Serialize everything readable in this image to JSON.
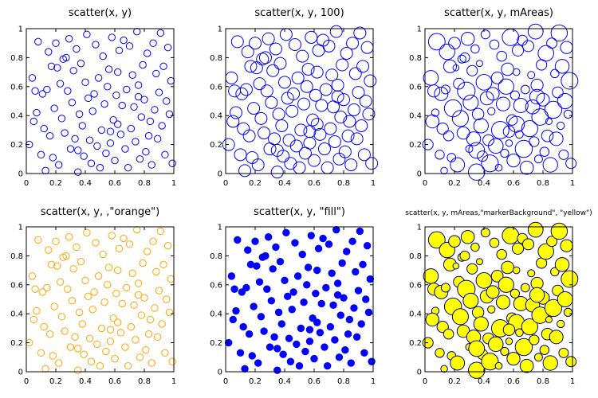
{
  "figure": {
    "background": "#ffffff",
    "axis_color": "#000000"
  },
  "chart_data": [
    {
      "type": "scatter",
      "title": "scatter(x, y)",
      "xlim": [
        0,
        1
      ],
      "ylim": [
        0,
        1
      ],
      "xticks": [
        "0",
        "0.2",
        "0.4",
        "0.6",
        "0.8",
        "1"
      ],
      "yticks": [
        "0",
        "0.2",
        "0.4",
        "0.6",
        "0.8",
        "1"
      ],
      "grid": false,
      "marker": {
        "edge": "#0000ff",
        "face": "none",
        "size": "default",
        "size_mode": "fixed"
      }
    },
    {
      "type": "scatter",
      "title": "scatter(x, y, 100)",
      "xlim": [
        0,
        1
      ],
      "ylim": [
        0,
        1
      ],
      "xticks": [
        "0",
        "0.2",
        "0.4",
        "0.6",
        "0.8",
        "1"
      ],
      "yticks": [
        "0",
        "0.2",
        "0.4",
        "0.6",
        "0.8",
        "1"
      ],
      "grid": false,
      "marker": {
        "edge": "#0000ff",
        "face": "none",
        "size": 100,
        "size_mode": "fixed"
      }
    },
    {
      "type": "scatter",
      "title": "scatter(x, y, mAreas)",
      "xlim": [
        0,
        1
      ],
      "ylim": [
        0,
        1
      ],
      "xticks": [
        "0",
        "0.2",
        "0.4",
        "0.6",
        "0.8",
        "1"
      ],
      "yticks": [
        "0",
        "0.2",
        "0.4",
        "0.6",
        "0.8",
        "1"
      ],
      "grid": false,
      "marker": {
        "edge": "#0000ff",
        "face": "none",
        "size": "mAreas",
        "size_mode": "variable"
      }
    },
    {
      "type": "scatter",
      "title": "scatter(x, y, ,\"orange\")",
      "xlim": [
        0,
        1
      ],
      "ylim": [
        0,
        1
      ],
      "xticks": [
        "0",
        "0.2",
        "0.4",
        "0.6",
        "0.8",
        "1"
      ],
      "yticks": [
        "0",
        "0.2",
        "0.4",
        "0.6",
        "0.8",
        "1"
      ],
      "grid": false,
      "marker": {
        "edge": "#ffa500",
        "face": "none",
        "size": "default",
        "size_mode": "fixed"
      }
    },
    {
      "type": "scatter",
      "title": "scatter(x, y, \"fill\")",
      "xlim": [
        0,
        1
      ],
      "ylim": [
        0,
        1
      ],
      "xticks": [
        "0",
        "0.2",
        "0.4",
        "0.6",
        "0.8",
        "1"
      ],
      "yticks": [
        "0",
        "0.2",
        "0.4",
        "0.6",
        "0.8",
        "1"
      ],
      "grid": false,
      "marker": {
        "edge": "#0000ff",
        "face": "#0000ff",
        "size": "default",
        "size_mode": "fixed"
      }
    },
    {
      "type": "scatter",
      "title": "scatter(x, y, mAreas,\"markerBackground\", \"yellow\")",
      "xlim": [
        0,
        1
      ],
      "ylim": [
        0,
        1
      ],
      "xticks": [
        "0",
        "0.2",
        "0.4",
        "0.6",
        "0.8",
        "1"
      ],
      "yticks": [
        "0",
        "0.2",
        "0.4",
        "0.6",
        "0.8",
        "1"
      ],
      "grid": false,
      "marker": {
        "edge": "#000080",
        "face": "#ffff00",
        "size": "mAreas",
        "size_mode": "variable"
      }
    }
  ],
  "shared_points": {
    "x": [
      0.02,
      0.04,
      0.06,
      0.07,
      0.08,
      0.1,
      0.11,
      0.12,
      0.13,
      0.15,
      0.16,
      0.17,
      0.18,
      0.19,
      0.2,
      0.21,
      0.22,
      0.23,
      0.24,
      0.25,
      0.26,
      0.27,
      0.28,
      0.29,
      0.3,
      0.31,
      0.32,
      0.33,
      0.34,
      0.35,
      0.36,
      0.37,
      0.38,
      0.39,
      0.4,
      0.41,
      0.42,
      0.43,
      0.44,
      0.45,
      0.46,
      0.47,
      0.48,
      0.49,
      0.5,
      0.51,
      0.52,
      0.53,
      0.54,
      0.55,
      0.56,
      0.57,
      0.58,
      0.59,
      0.6,
      0.61,
      0.62,
      0.63,
      0.64,
      0.65,
      0.66,
      0.67,
      0.68,
      0.69,
      0.7,
      0.71,
      0.72,
      0.73,
      0.74,
      0.75,
      0.76,
      0.77,
      0.78,
      0.79,
      0.8,
      0.81,
      0.82,
      0.83,
      0.84,
      0.85,
      0.86,
      0.87,
      0.88,
      0.89,
      0.9,
      0.91,
      0.92,
      0.93,
      0.94,
      0.95,
      0.96,
      0.97,
      0.98,
      0.99,
      0.05,
      0.14,
      0.35,
      0.57,
      0.62,
      0.76
    ],
    "y": [
      0.2,
      0.66,
      0.57,
      0.42,
      0.91,
      0.13,
      0.55,
      0.31,
      0.02,
      0.84,
      0.26,
      0.74,
      0.11,
      0.45,
      0.9,
      0.73,
      0.06,
      0.62,
      0.38,
      0.79,
      0.28,
      0.8,
      0.57,
      0.93,
      0.17,
      0.49,
      0.71,
      0.24,
      0.86,
      0.01,
      0.41,
      0.76,
      0.33,
      0.12,
      0.63,
      0.96,
      0.52,
      0.23,
      0.07,
      0.43,
      0.55,
      0.89,
      0.19,
      0.66,
      0.04,
      0.3,
      0.81,
      0.48,
      0.14,
      0.6,
      0.72,
      0.21,
      0.94,
      0.37,
      0.09,
      0.54,
      0.34,
      0.85,
      0.27,
      0.47,
      0.92,
      0.17,
      0.58,
      0.04,
      0.88,
      0.31,
      0.68,
      0.46,
      0.22,
      0.98,
      0.61,
      0.1,
      0.39,
      0.75,
      0.51,
      0.15,
      0.83,
      0.26,
      0.36,
      0.06,
      0.9,
      0.44,
      0.69,
      0.24,
      0.56,
      0.97,
      0.33,
      0.74,
      0.13,
      0.5,
      0.87,
      0.41,
      0.64,
      0.07,
      0.36,
      0.58,
      0.16,
      0.29,
      0.7,
      0.53
    ],
    "areas": [
      60,
      120,
      80,
      30,
      150,
      45,
      100,
      70,
      25,
      130,
      55,
      90,
      40,
      160,
      75,
      20,
      110,
      65,
      140,
      35,
      85,
      50,
      170,
      95,
      28,
      125,
      60,
      105,
      38,
      145,
      72,
      22,
      115,
      58,
      135,
      42,
      98,
      66,
      155,
      30,
      88,
      48,
      118,
      76,
      26,
      165,
      54,
      102,
      36,
      128,
      84,
      24,
      150,
      62,
      92,
      44,
      138,
      70,
      32,
      112,
      56,
      160,
      40,
      96,
      68,
      142,
      28,
      108,
      52,
      122,
      80,
      34,
      148,
      60,
      90,
      46,
      132,
      74,
      22,
      116,
      58,
      158,
      38,
      100,
      64,
      144,
      30,
      106,
      50,
      126,
      82,
      36,
      152,
      58,
      94,
      42,
      136,
      72,
      26,
      118
    ]
  }
}
